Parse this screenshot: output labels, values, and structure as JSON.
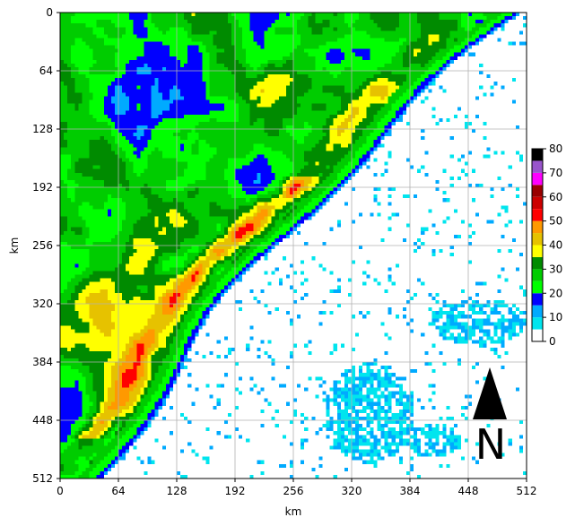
{
  "chart_data": {
    "type": "heatmap",
    "xlabel": "km",
    "ylabel": "km",
    "xlim": [
      0,
      512
    ],
    "ylim": [
      512,
      0
    ],
    "x_ticks": [
      0,
      64,
      128,
      192,
      256,
      320,
      384,
      448,
      512
    ],
    "y_ticks": [
      0,
      64,
      128,
      192,
      256,
      320,
      384,
      448,
      512
    ],
    "grid": true,
    "colorbar": {
      "min": 0,
      "max": 80,
      "tick_values": [
        0,
        10,
        20,
        30,
        40,
        50,
        60,
        70,
        80
      ],
      "bounds": [
        0,
        5,
        10,
        15,
        20,
        25,
        30,
        35,
        40,
        45,
        50,
        55,
        60,
        65,
        70,
        75,
        80
      ],
      "colors": [
        "#ffffff",
        "#00e5ee",
        "#00aaff",
        "#0000ff",
        "#00ff00",
        "#00cc00",
        "#008b00",
        "#ffff00",
        "#e6c200",
        "#ff9900",
        "#ff0000",
        "#cc0000",
        "#990000",
        "#ff00ff",
        "#9955cc",
        "#000000"
      ]
    },
    "north_arrow": {
      "label": "N"
    },
    "grid_cols": 128,
    "grid_rows": 128
  }
}
